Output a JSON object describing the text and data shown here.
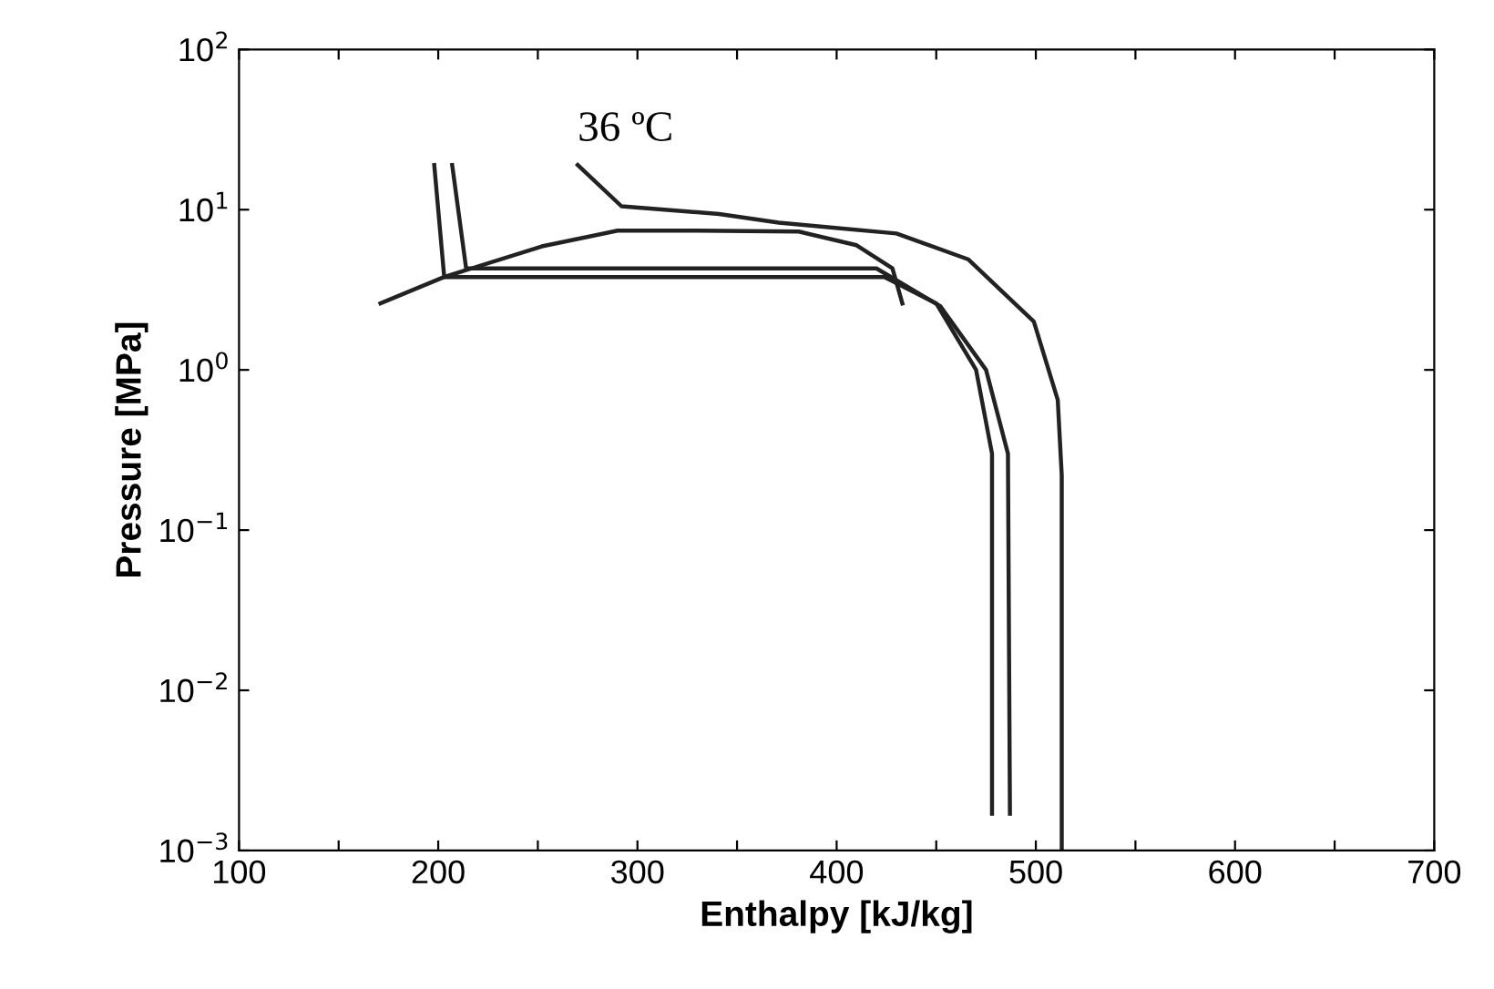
{
  "chart_data": {
    "type": "line",
    "xlabel": "Enthalpy [kJ/kg]",
    "ylabel": "Pressure [MPa]",
    "log": "y",
    "grid": false,
    "marker": "none",
    "line_style": "solid",
    "xlim": [
      100,
      700
    ],
    "xticks": [
      100,
      {
        "value": 150,
        "label": null
      },
      200,
      {
        "value": 250,
        "label": null
      },
      300,
      {
        "value": 350,
        "label": null
      },
      400,
      {
        "value": 450,
        "label": null
      },
      500,
      {
        "value": 550,
        "label": null
      },
      600,
      {
        "value": 650,
        "label": null
      },
      700
    ],
    "ylim": [
      0.001,
      100
    ],
    "yticks": [
      {
        "value": 0.001,
        "label": "10$^{−3}$"
      },
      {
        "value": 0.01,
        "label": "10$^{−2}$"
      },
      {
        "value": 0.1,
        "label": "10$^{−1}$"
      },
      {
        "value": 1,
        "label": "10$^{0}$"
      },
      {
        "value": 10,
        "label": "10$^{1}$"
      },
      {
        "value": 100,
        "label": "10$^{2}$"
      }
    ],
    "series": [
      {
        "color": "#222222",
        "x": [
          171,
          203,
          252,
          290,
          330,
          381,
          410,
          428,
          433
        ],
        "values": [
          2.6,
          3.8,
          5.9,
          7.4,
          7.4,
          7.3,
          6.0,
          4.3,
          2.6
        ]
      },
      {
        "color": "#222222",
        "x": [
          270,
          292,
          341,
          371,
          430,
          466,
          499,
          511,
          513,
          513
        ],
        "values": [
          19,
          10.5,
          9.4,
          8.3,
          7.1,
          4.9,
          2.0,
          0.65,
          0.22,
          0.001
        ]
      },
      {
        "color": "#222222",
        "x": [
          198,
          203,
          424,
          450,
          470,
          478,
          478
        ],
        "values": [
          19,
          3.8,
          3.8,
          2.6,
          1.0,
          0.3,
          0.0017
        ]
      },
      {
        "color": "#222222",
        "x": [
          207,
          214,
          420,
          452,
          475,
          486,
          487
        ],
        "values": [
          19,
          4.3,
          4.3,
          2.5,
          1.0,
          0.3,
          0.0017
        ]
      }
    ],
    "annotations": [
      {
        "text": "36 ºC",
        "x": 270,
        "y": 19
      }
    ]
  }
}
